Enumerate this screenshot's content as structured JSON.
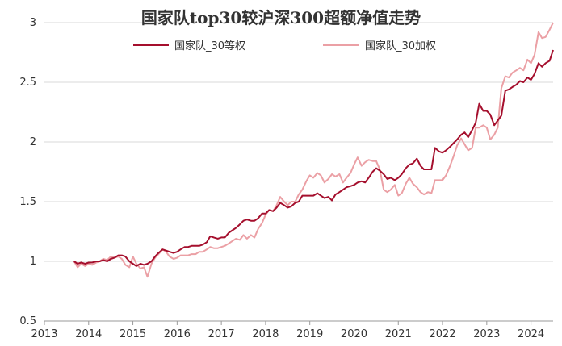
{
  "chart_data": {
    "type": "line",
    "title": "国家队top30较沪深300超额净值走势",
    "xlabel": "",
    "ylabel": "",
    "xlim": [
      2013,
      2024.5
    ],
    "ylim": [
      0.5,
      3
    ],
    "x_ticks": [
      "2013",
      "2014",
      "2015",
      "2016",
      "2017",
      "2018",
      "2019",
      "2020",
      "2021",
      "2022",
      "2023",
      "2024"
    ],
    "y_ticks": [
      "0.5",
      "1",
      "1.5",
      "2",
      "2.5",
      "3"
    ],
    "grid": "horizontal",
    "legend_position": "top",
    "series": [
      {
        "name": "国家队_30等权",
        "color": "#a50f2d",
        "points": [
          [
            2013.67,
            1.0
          ],
          [
            2013.75,
            0.98
          ],
          [
            2013.83,
            0.99
          ],
          [
            2013.92,
            0.98
          ],
          [
            2014.0,
            0.99
          ],
          [
            2014.08,
            0.99
          ],
          [
            2014.17,
            1.0
          ],
          [
            2014.25,
            1.0
          ],
          [
            2014.33,
            1.01
          ],
          [
            2014.42,
            1.0
          ],
          [
            2014.5,
            1.02
          ],
          [
            2014.58,
            1.03
          ],
          [
            2014.67,
            1.05
          ],
          [
            2014.75,
            1.05
          ],
          [
            2014.83,
            1.04
          ],
          [
            2014.92,
            1.0
          ],
          [
            2015.0,
            0.98
          ],
          [
            2015.08,
            0.96
          ],
          [
            2015.17,
            0.98
          ],
          [
            2015.25,
            0.97
          ],
          [
            2015.33,
            0.98
          ],
          [
            2015.42,
            1.0
          ],
          [
            2015.5,
            1.04
          ],
          [
            2015.58,
            1.07
          ],
          [
            2015.67,
            1.1
          ],
          [
            2015.75,
            1.09
          ],
          [
            2015.83,
            1.08
          ],
          [
            2015.92,
            1.07
          ],
          [
            2016.0,
            1.08
          ],
          [
            2016.08,
            1.1
          ],
          [
            2016.17,
            1.12
          ],
          [
            2016.25,
            1.12
          ],
          [
            2016.33,
            1.13
          ],
          [
            2016.42,
            1.13
          ],
          [
            2016.5,
            1.13
          ],
          [
            2016.58,
            1.14
          ],
          [
            2016.67,
            1.16
          ],
          [
            2016.75,
            1.21
          ],
          [
            2016.83,
            1.2
          ],
          [
            2016.92,
            1.19
          ],
          [
            2017.0,
            1.2
          ],
          [
            2017.08,
            1.2
          ],
          [
            2017.17,
            1.24
          ],
          [
            2017.25,
            1.26
          ],
          [
            2017.33,
            1.28
          ],
          [
            2017.42,
            1.31
          ],
          [
            2017.5,
            1.34
          ],
          [
            2017.58,
            1.35
          ],
          [
            2017.67,
            1.34
          ],
          [
            2017.75,
            1.34
          ],
          [
            2017.83,
            1.36
          ],
          [
            2017.92,
            1.4
          ],
          [
            2018.0,
            1.4
          ],
          [
            2018.08,
            1.43
          ],
          [
            2018.17,
            1.42
          ],
          [
            2018.25,
            1.45
          ],
          [
            2018.33,
            1.49
          ],
          [
            2018.42,
            1.47
          ],
          [
            2018.5,
            1.45
          ],
          [
            2018.58,
            1.46
          ],
          [
            2018.67,
            1.49
          ],
          [
            2018.75,
            1.5
          ],
          [
            2018.83,
            1.55
          ],
          [
            2018.92,
            1.55
          ],
          [
            2019.0,
            1.55
          ],
          [
            2019.08,
            1.55
          ],
          [
            2019.17,
            1.57
          ],
          [
            2019.25,
            1.55
          ],
          [
            2019.33,
            1.53
          ],
          [
            2019.42,
            1.54
          ],
          [
            2019.5,
            1.51
          ],
          [
            2019.58,
            1.56
          ],
          [
            2019.67,
            1.58
          ],
          [
            2019.75,
            1.6
          ],
          [
            2019.83,
            1.62
          ],
          [
            2019.92,
            1.63
          ],
          [
            2020.0,
            1.64
          ],
          [
            2020.08,
            1.66
          ],
          [
            2020.17,
            1.67
          ],
          [
            2020.25,
            1.66
          ],
          [
            2020.33,
            1.7
          ],
          [
            2020.42,
            1.75
          ],
          [
            2020.5,
            1.78
          ],
          [
            2020.58,
            1.76
          ],
          [
            2020.67,
            1.73
          ],
          [
            2020.75,
            1.69
          ],
          [
            2020.83,
            1.7
          ],
          [
            2020.92,
            1.68
          ],
          [
            2021.0,
            1.7
          ],
          [
            2021.08,
            1.73
          ],
          [
            2021.17,
            1.78
          ],
          [
            2021.25,
            1.81
          ],
          [
            2021.33,
            1.82
          ],
          [
            2021.42,
            1.86
          ],
          [
            2021.5,
            1.8
          ],
          [
            2021.58,
            1.77
          ],
          [
            2021.67,
            1.77
          ],
          [
            2021.75,
            1.77
          ],
          [
            2021.83,
            1.95
          ],
          [
            2021.92,
            1.92
          ],
          [
            2022.0,
            1.91
          ],
          [
            2022.08,
            1.93
          ],
          [
            2022.17,
            1.96
          ],
          [
            2022.25,
            1.99
          ],
          [
            2022.33,
            2.02
          ],
          [
            2022.42,
            2.06
          ],
          [
            2022.5,
            2.08
          ],
          [
            2022.58,
            2.04
          ],
          [
            2022.67,
            2.1
          ],
          [
            2022.75,
            2.16
          ],
          [
            2022.83,
            2.32
          ],
          [
            2022.92,
            2.26
          ],
          [
            2023.0,
            2.26
          ],
          [
            2023.08,
            2.23
          ],
          [
            2023.17,
            2.14
          ],
          [
            2023.25,
            2.18
          ],
          [
            2023.33,
            2.22
          ],
          [
            2023.42,
            2.43
          ],
          [
            2023.5,
            2.44
          ],
          [
            2023.58,
            2.46
          ],
          [
            2023.67,
            2.48
          ],
          [
            2023.75,
            2.51
          ],
          [
            2023.83,
            2.5
          ],
          [
            2023.92,
            2.54
          ],
          [
            2024.0,
            2.52
          ],
          [
            2024.08,
            2.57
          ],
          [
            2024.17,
            2.66
          ],
          [
            2024.25,
            2.63
          ],
          [
            2024.33,
            2.66
          ],
          [
            2024.42,
            2.68
          ],
          [
            2024.5,
            2.77
          ]
        ]
      },
      {
        "name": "国家队_30加权",
        "color": "#eba0a5",
        "points": [
          [
            2013.67,
            1.0
          ],
          [
            2013.75,
            0.95
          ],
          [
            2013.83,
            0.98
          ],
          [
            2013.92,
            0.96
          ],
          [
            2014.0,
            0.98
          ],
          [
            2014.08,
            0.97
          ],
          [
            2014.17,
            0.99
          ],
          [
            2014.25,
            1.0
          ],
          [
            2014.33,
            1.02
          ],
          [
            2014.42,
            1.01
          ],
          [
            2014.5,
            1.04
          ],
          [
            2014.58,
            1.03
          ],
          [
            2014.67,
            1.04
          ],
          [
            2014.75,
            1.02
          ],
          [
            2014.83,
            0.97
          ],
          [
            2014.92,
            0.95
          ],
          [
            2015.0,
            1.04
          ],
          [
            2015.08,
            0.98
          ],
          [
            2015.17,
            0.94
          ],
          [
            2015.25,
            0.95
          ],
          [
            2015.33,
            0.87
          ],
          [
            2015.42,
            0.98
          ],
          [
            2015.5,
            1.03
          ],
          [
            2015.58,
            1.06
          ],
          [
            2015.67,
            1.1
          ],
          [
            2015.75,
            1.08
          ],
          [
            2015.83,
            1.04
          ],
          [
            2015.92,
            1.02
          ],
          [
            2016.0,
            1.03
          ],
          [
            2016.08,
            1.05
          ],
          [
            2016.17,
            1.05
          ],
          [
            2016.25,
            1.05
          ],
          [
            2016.33,
            1.06
          ],
          [
            2016.42,
            1.06
          ],
          [
            2016.5,
            1.08
          ],
          [
            2016.58,
            1.08
          ],
          [
            2016.67,
            1.1
          ],
          [
            2016.75,
            1.12
          ],
          [
            2016.83,
            1.11
          ],
          [
            2016.92,
            1.11
          ],
          [
            2017.0,
            1.12
          ],
          [
            2017.08,
            1.13
          ],
          [
            2017.17,
            1.15
          ],
          [
            2017.25,
            1.17
          ],
          [
            2017.33,
            1.19
          ],
          [
            2017.42,
            1.18
          ],
          [
            2017.5,
            1.22
          ],
          [
            2017.58,
            1.19
          ],
          [
            2017.67,
            1.22
          ],
          [
            2017.75,
            1.2
          ],
          [
            2017.83,
            1.27
          ],
          [
            2017.92,
            1.32
          ],
          [
            2018.0,
            1.39
          ],
          [
            2018.08,
            1.43
          ],
          [
            2018.17,
            1.42
          ],
          [
            2018.25,
            1.47
          ],
          [
            2018.33,
            1.54
          ],
          [
            2018.42,
            1.5
          ],
          [
            2018.5,
            1.47
          ],
          [
            2018.58,
            1.5
          ],
          [
            2018.67,
            1.5
          ],
          [
            2018.75,
            1.56
          ],
          [
            2018.83,
            1.6
          ],
          [
            2018.92,
            1.67
          ],
          [
            2019.0,
            1.72
          ],
          [
            2019.08,
            1.7
          ],
          [
            2019.17,
            1.74
          ],
          [
            2019.25,
            1.72
          ],
          [
            2019.33,
            1.66
          ],
          [
            2019.42,
            1.69
          ],
          [
            2019.5,
            1.73
          ],
          [
            2019.58,
            1.71
          ],
          [
            2019.67,
            1.73
          ],
          [
            2019.75,
            1.66
          ],
          [
            2019.83,
            1.7
          ],
          [
            2019.92,
            1.74
          ],
          [
            2020.0,
            1.81
          ],
          [
            2020.08,
            1.87
          ],
          [
            2020.17,
            1.8
          ],
          [
            2020.25,
            1.83
          ],
          [
            2020.33,
            1.85
          ],
          [
            2020.42,
            1.84
          ],
          [
            2020.5,
            1.84
          ],
          [
            2020.58,
            1.77
          ],
          [
            2020.67,
            1.6
          ],
          [
            2020.75,
            1.58
          ],
          [
            2020.83,
            1.6
          ],
          [
            2020.92,
            1.64
          ],
          [
            2021.0,
            1.55
          ],
          [
            2021.08,
            1.57
          ],
          [
            2021.17,
            1.65
          ],
          [
            2021.25,
            1.7
          ],
          [
            2021.33,
            1.65
          ],
          [
            2021.42,
            1.62
          ],
          [
            2021.5,
            1.58
          ],
          [
            2021.58,
            1.56
          ],
          [
            2021.67,
            1.58
          ],
          [
            2021.75,
            1.57
          ],
          [
            2021.83,
            1.68
          ],
          [
            2021.92,
            1.68
          ],
          [
            2022.0,
            1.68
          ],
          [
            2022.08,
            1.72
          ],
          [
            2022.17,
            1.8
          ],
          [
            2022.25,
            1.88
          ],
          [
            2022.33,
            1.97
          ],
          [
            2022.42,
            2.03
          ],
          [
            2022.5,
            1.98
          ],
          [
            2022.58,
            1.93
          ],
          [
            2022.67,
            1.95
          ],
          [
            2022.75,
            2.12
          ],
          [
            2022.83,
            2.12
          ],
          [
            2022.92,
            2.14
          ],
          [
            2023.0,
            2.12
          ],
          [
            2023.08,
            2.02
          ],
          [
            2023.17,
            2.06
          ],
          [
            2023.25,
            2.12
          ],
          [
            2023.33,
            2.45
          ],
          [
            2023.42,
            2.55
          ],
          [
            2023.5,
            2.54
          ],
          [
            2023.58,
            2.58
          ],
          [
            2023.67,
            2.6
          ],
          [
            2023.75,
            2.62
          ],
          [
            2023.83,
            2.6
          ],
          [
            2023.92,
            2.69
          ],
          [
            2024.0,
            2.66
          ],
          [
            2024.08,
            2.73
          ],
          [
            2024.17,
            2.92
          ],
          [
            2024.25,
            2.87
          ],
          [
            2024.33,
            2.88
          ],
          [
            2024.42,
            2.94
          ],
          [
            2024.5,
            3.0
          ]
        ]
      }
    ]
  }
}
